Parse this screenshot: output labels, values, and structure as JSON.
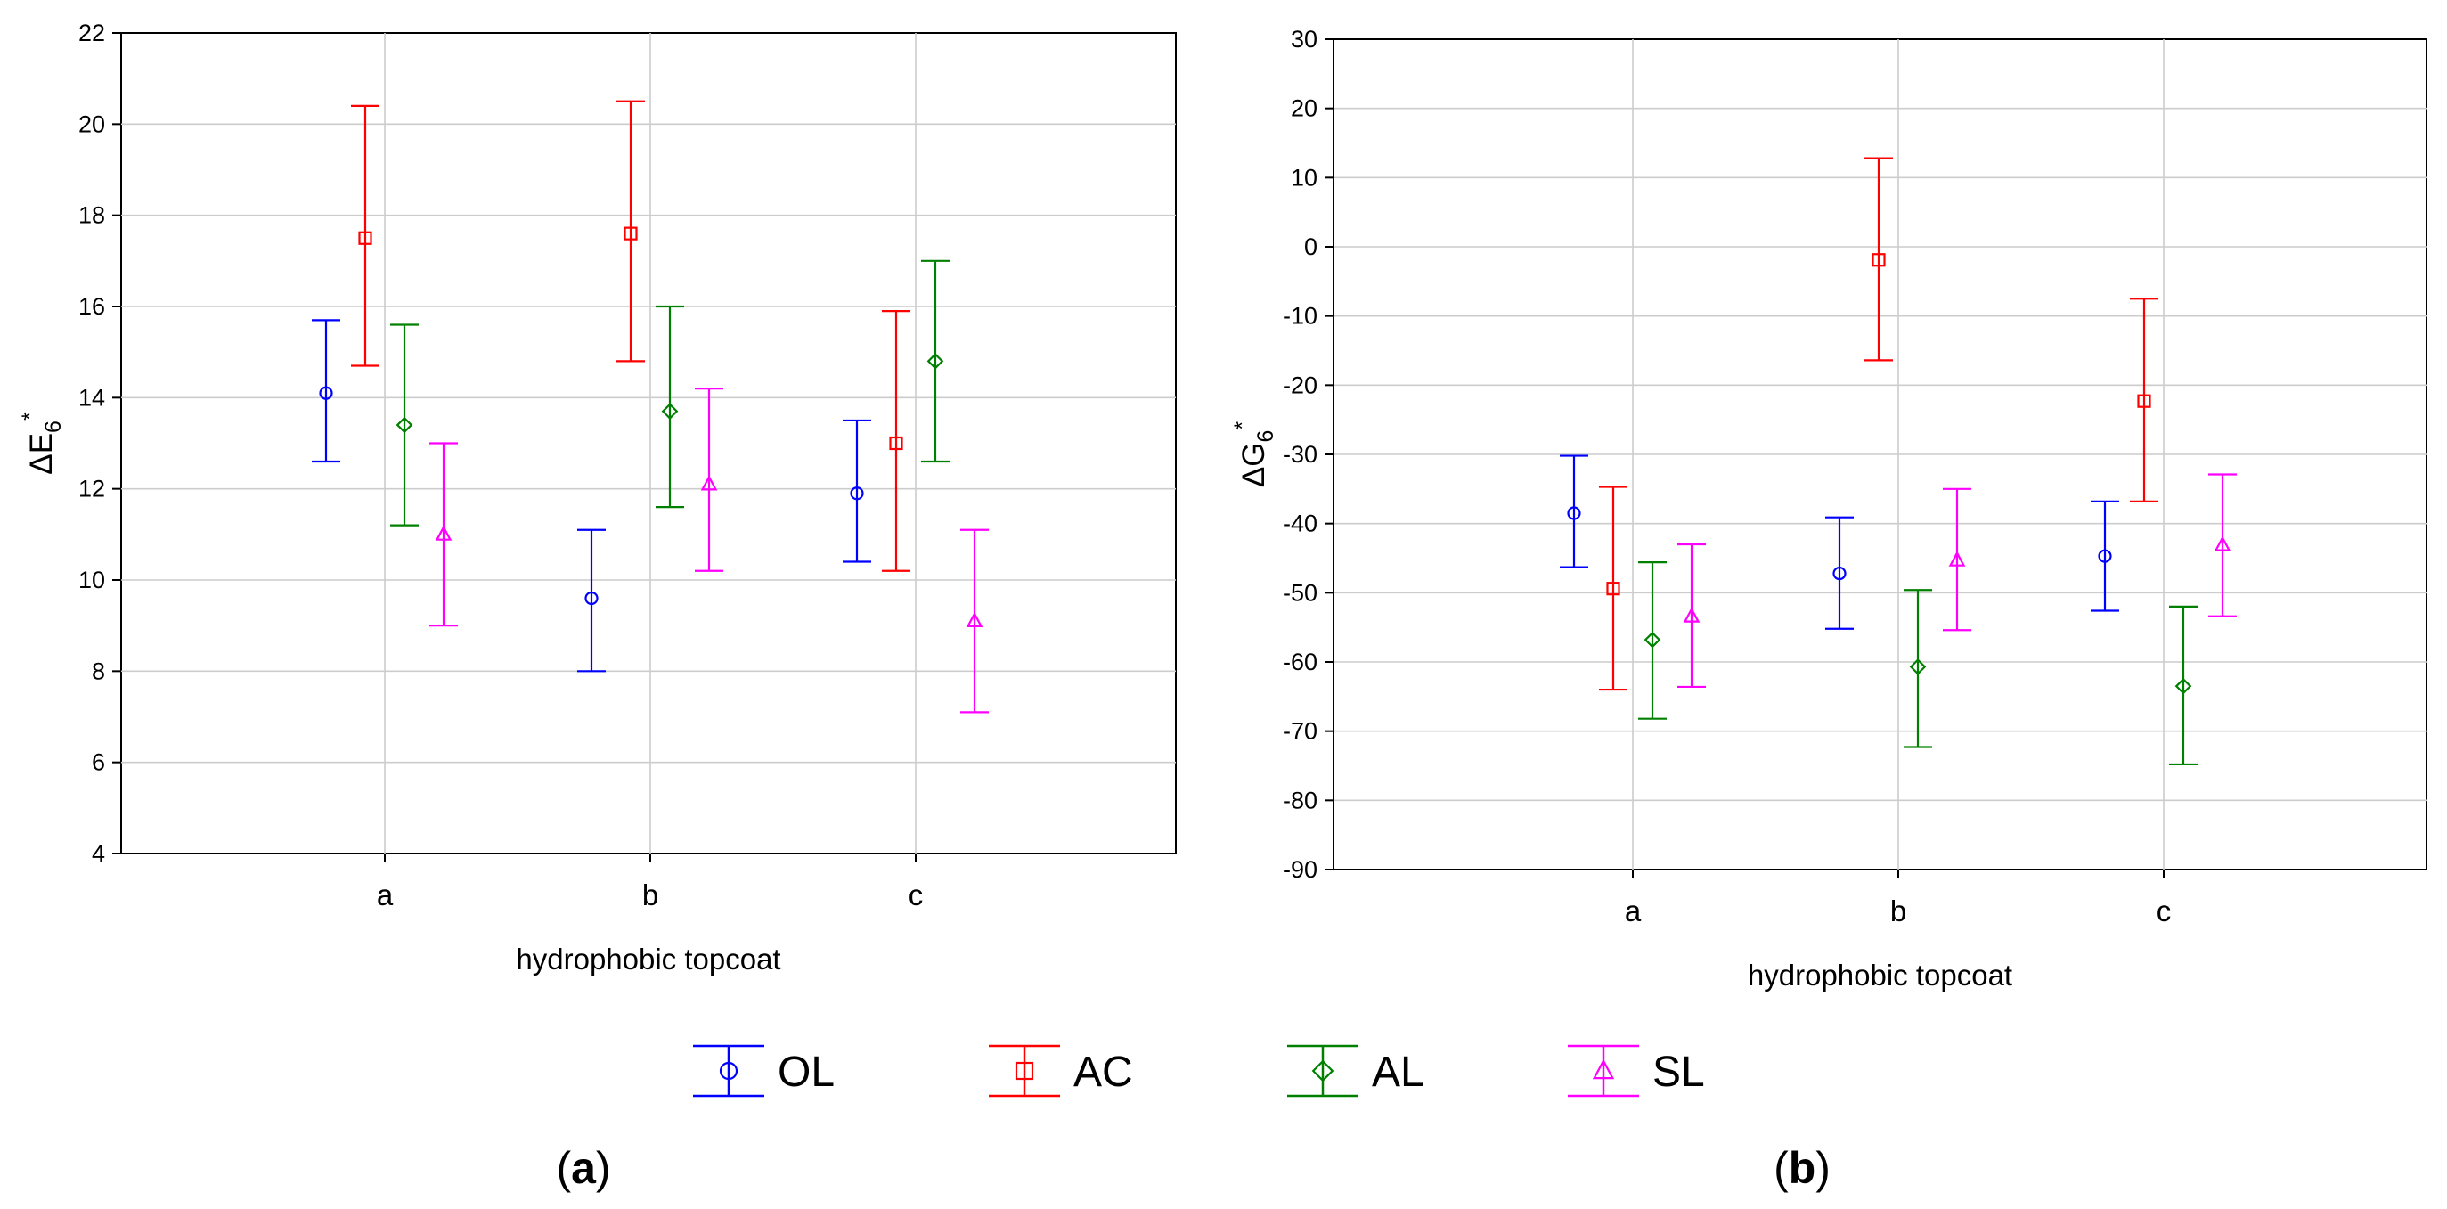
{
  "legend": [
    {
      "key": "OL",
      "label": "OL",
      "color": "#0000ff",
      "marker": "circle"
    },
    {
      "key": "AC",
      "label": "AC",
      "color": "#ff0000",
      "marker": "square"
    },
    {
      "key": "AL",
      "label": "AL",
      "color": "#008000",
      "marker": "diamond"
    },
    {
      "key": "SL",
      "label": "SL",
      "color": "#ff00ff",
      "marker": "triangle"
    }
  ],
  "chart_data": [
    {
      "type": "scatter",
      "panel_label": "a",
      "ylabel": {
        "base": "ΔE",
        "sub": "6",
        "sup": "*"
      },
      "xlabel": "hydrophobic topcoat",
      "categories": [
        "a",
        "b",
        "c"
      ],
      "ylim": [
        4,
        22
      ],
      "yticks": [
        "4",
        "6",
        "8",
        "10",
        "12",
        "14",
        "16",
        "18",
        "20",
        "22"
      ],
      "grid": true,
      "series": [
        {
          "name": "OL",
          "color": "#0000ff",
          "marker": "circle",
          "mean": [
            14.1,
            9.6,
            11.9
          ],
          "lower": [
            12.6,
            8.0,
            10.4
          ],
          "upper": [
            15.7,
            11.1,
            13.5
          ]
        },
        {
          "name": "AC",
          "color": "#ff0000",
          "marker": "square",
          "mean": [
            17.5,
            17.6,
            13.0
          ],
          "lower": [
            14.7,
            14.8,
            10.2
          ],
          "upper": [
            20.4,
            20.5,
            15.9
          ]
        },
        {
          "name": "AL",
          "color": "#008000",
          "marker": "diamond",
          "mean": [
            13.4,
            13.7,
            14.8
          ],
          "lower": [
            11.2,
            11.6,
            12.6
          ],
          "upper": [
            15.6,
            16.0,
            17.0
          ]
        },
        {
          "name": "SL",
          "color": "#ff00ff",
          "marker": "triangle",
          "mean": [
            11.0,
            12.1,
            9.1
          ],
          "lower": [
            9.0,
            10.2,
            7.1
          ],
          "upper": [
            13.0,
            14.2,
            11.1
          ]
        }
      ]
    },
    {
      "type": "scatter",
      "panel_label": "b",
      "ylabel": {
        "base": "ΔG",
        "sub": "6",
        "sup": "*"
      },
      "xlabel": "hydrophobic topcoat",
      "categories": [
        "a",
        "b",
        "c"
      ],
      "ylim": [
        -90,
        30
      ],
      "yticks": [
        "-90",
        "-80",
        "-70",
        "-60",
        "-50",
        "-40",
        "-30",
        "-20",
        "-10",
        "0",
        "10",
        "20",
        "30"
      ],
      "grid": true,
      "series": [
        {
          "name": "OL",
          "color": "#0000ff",
          "marker": "circle",
          "mean": [
            -38.5,
            -47.2,
            -44.7
          ],
          "lower": [
            -46.3,
            -55.2,
            -52.6
          ],
          "upper": [
            -30.2,
            -39.1,
            -36.8
          ]
        },
        {
          "name": "AC",
          "color": "#ff0000",
          "marker": "square",
          "mean": [
            -49.4,
            -1.9,
            -22.3
          ],
          "lower": [
            -64.0,
            -16.4,
            -36.8
          ],
          "upper": [
            -34.7,
            12.8,
            -7.5
          ]
        },
        {
          "name": "AL",
          "color": "#008000",
          "marker": "diamond",
          "mean": [
            -56.8,
            -60.7,
            -63.5
          ],
          "lower": [
            -68.2,
            -72.3,
            -74.8
          ],
          "upper": [
            -45.6,
            -49.6,
            -52.0
          ]
        },
        {
          "name": "SL",
          "color": "#ff00ff",
          "marker": "triangle",
          "mean": [
            -53.4,
            -45.3,
            -43.1
          ],
          "lower": [
            -63.6,
            -55.4,
            -53.4
          ],
          "upper": [
            -43.0,
            -35.0,
            -32.9
          ]
        }
      ]
    }
  ]
}
